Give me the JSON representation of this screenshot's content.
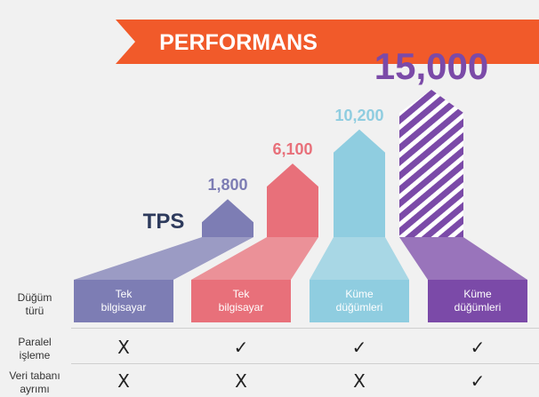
{
  "banner": {
    "title": "PERFORMANS",
    "color": "#f15a2a"
  },
  "chart_data": {
    "type": "bar",
    "unit_label": "TPS",
    "categories": [
      "Tek bilgisayar",
      "Tek bilgisayar",
      "Küme düğümleri",
      "Küme düğümleri"
    ],
    "values": [
      1800,
      6100,
      10200,
      15000
    ],
    "value_labels": [
      "1,800",
      "6,100",
      "10,200",
      "15,000"
    ],
    "colors": [
      "#7d7db4",
      "#e8707a",
      "#8fcde0",
      "#7b4aa8"
    ],
    "fills": [
      "solid",
      "solid",
      "solid",
      "hatched"
    ],
    "base_labels": [
      [
        "Tek",
        "bilgisayar"
      ],
      [
        "Tek",
        "bilgisayar"
      ],
      [
        "Küme",
        "düğümleri"
      ],
      [
        "Küme",
        "düğümleri"
      ]
    ]
  },
  "table": {
    "rows": [
      {
        "label": [
          "Düğüm",
          "türü"
        ]
      },
      {
        "label": [
          "Paralel",
          "işleme"
        ],
        "marks": [
          "X",
          "✓",
          "✓",
          "✓"
        ]
      },
      {
        "label": [
          "Veri tabanı",
          "ayrımı"
        ],
        "marks": [
          "X",
          "X",
          "X",
          "✓"
        ]
      }
    ]
  }
}
